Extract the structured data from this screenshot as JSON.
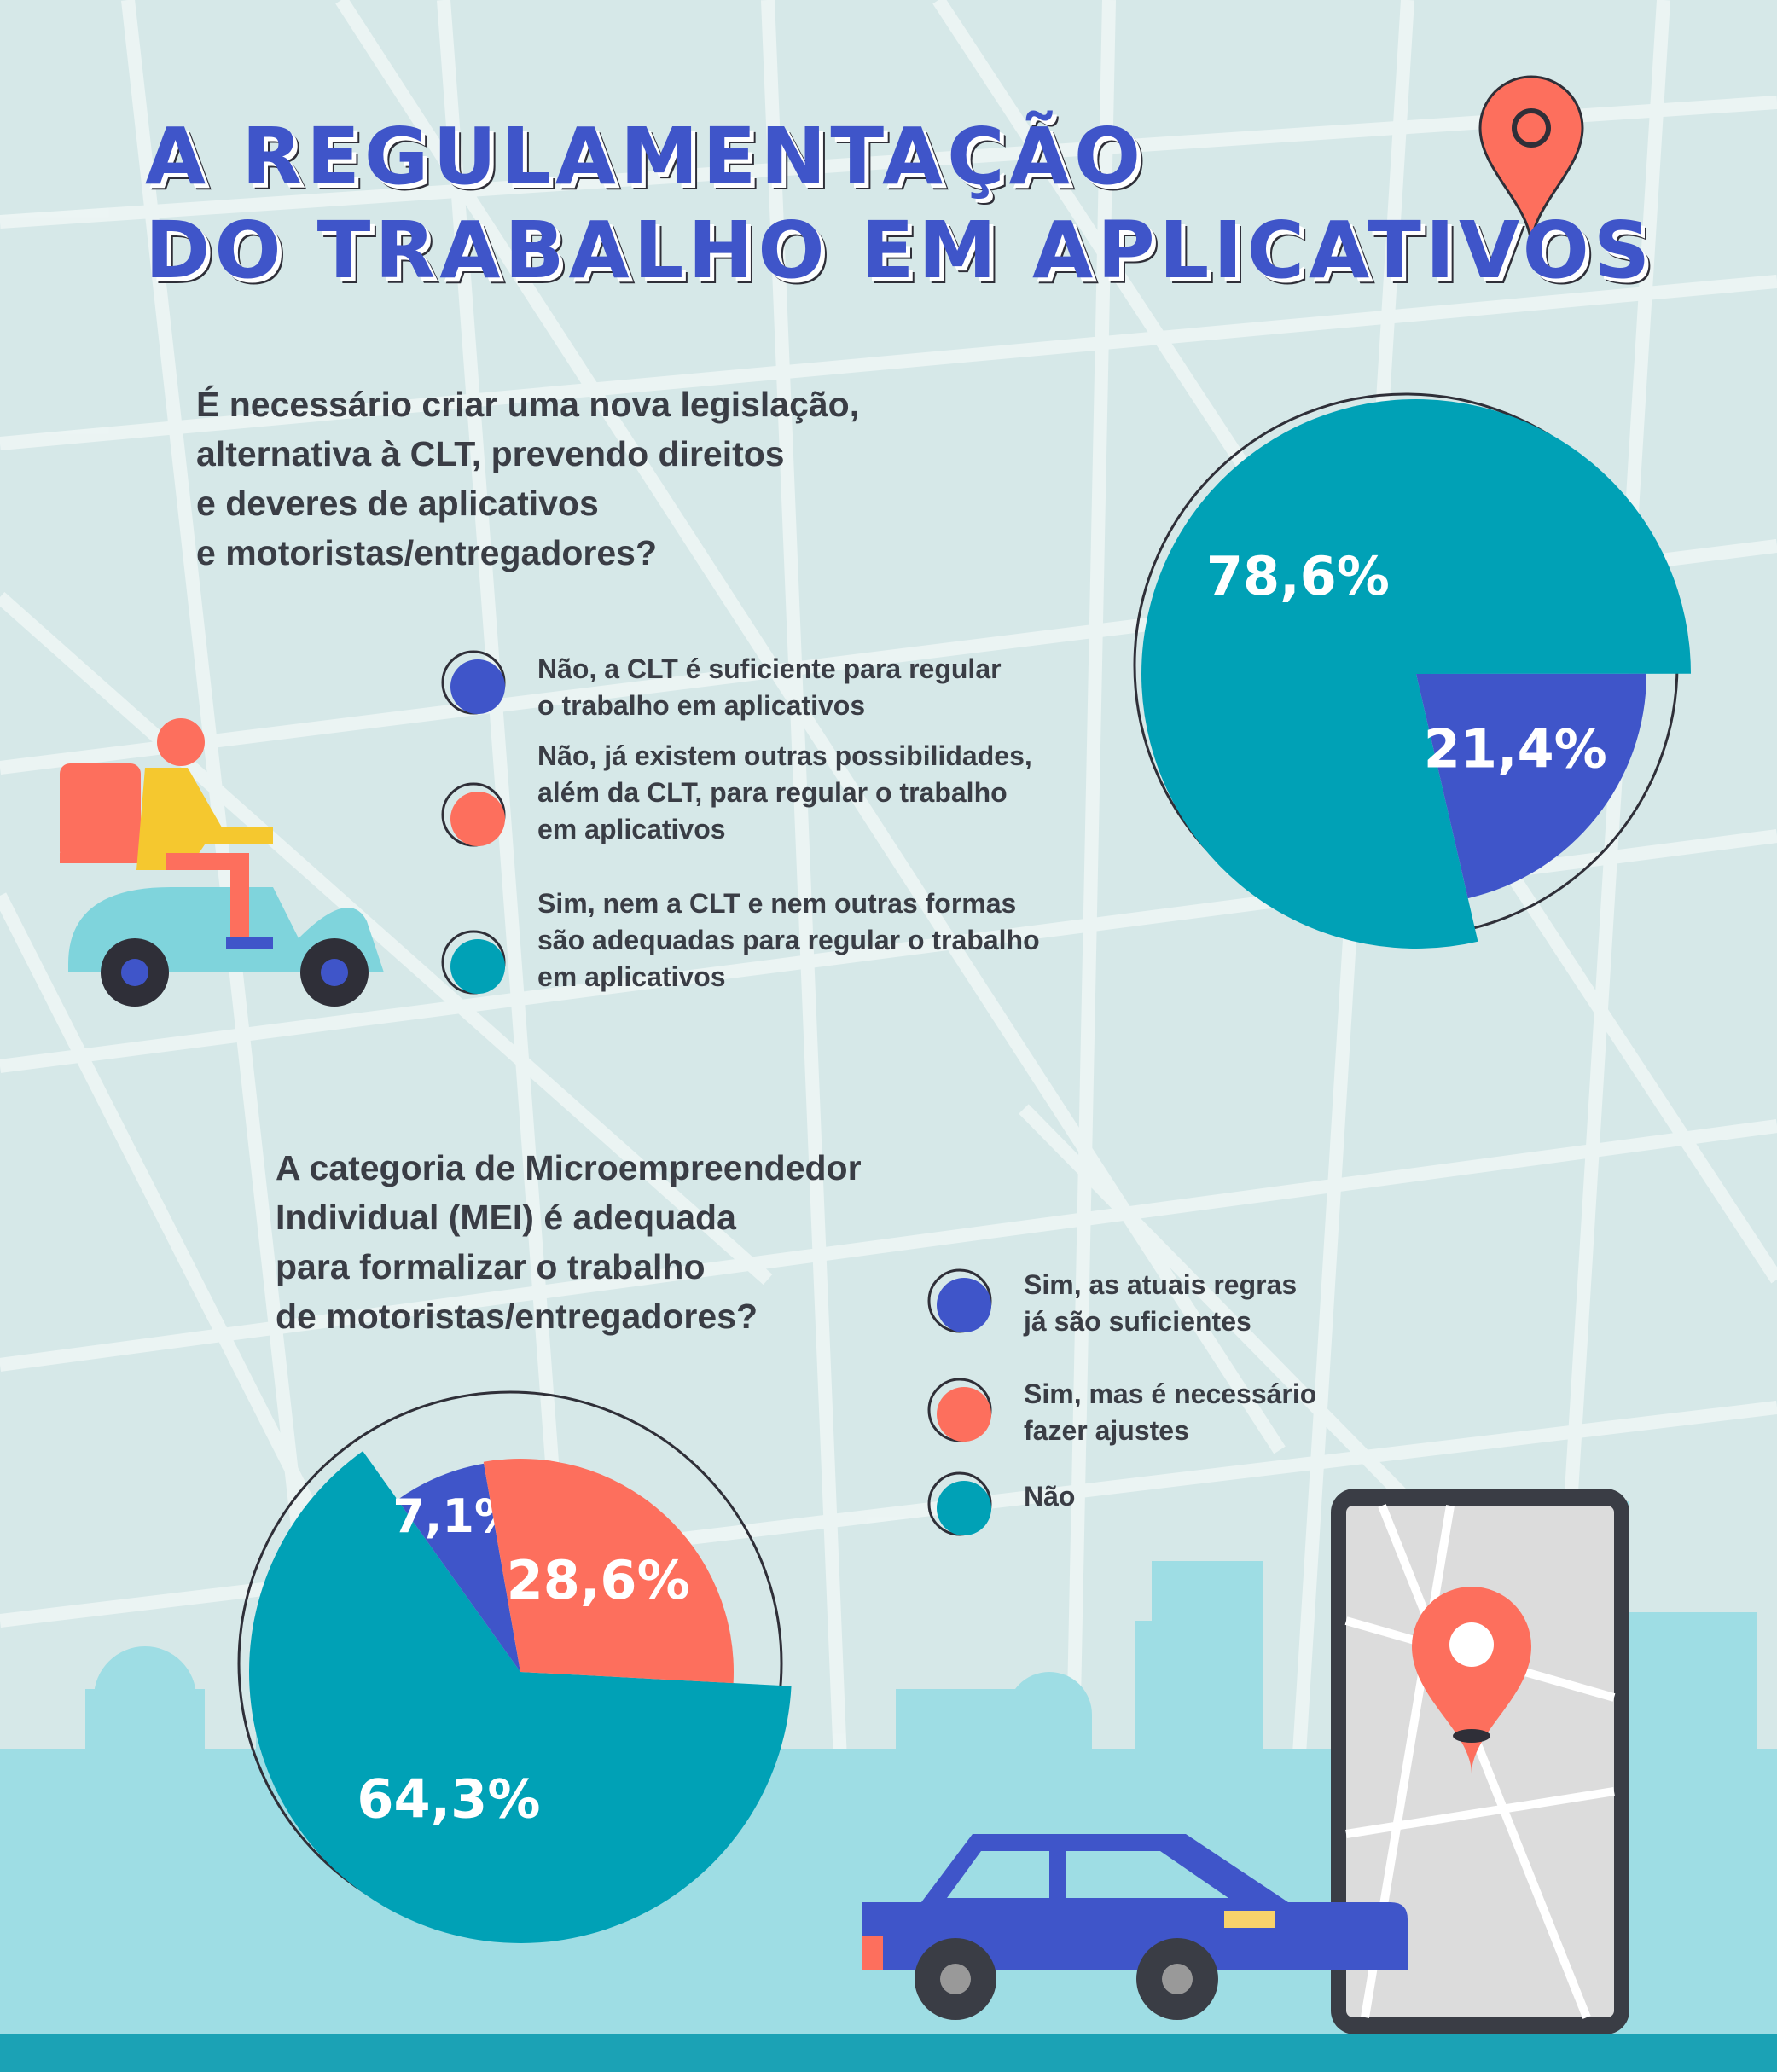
{
  "title": {
    "line1": "A REGULAMENTAÇÃO",
    "line2": "DO TRABALHO EM APLICATIVOS"
  },
  "colors": {
    "blue": "#3f55c9",
    "coral": "#fd6f5d",
    "teal": "#00a1b6",
    "background": "#d6e8e8"
  },
  "section1": {
    "question": "É necessário criar uma nova legislação,\nalternativa à CLT, prevendo direitos\ne deveres de aplicativos\ne motoristas/entregadores?",
    "legend": [
      {
        "label": "Não, a CLT é suficiente para regular\no trabalho em aplicativos",
        "color": "#3f55c9"
      },
      {
        "label": "Não, já existem outras possibilidades,\nalém da CLT, para regular o trabalho\nem aplicativos",
        "color": "#fd6f5d"
      },
      {
        "label": "Sim, nem a CLT e nem outras formas\nsão adequadas para regular o trabalho\nem aplicativos",
        "color": "#00a1b6"
      }
    ]
  },
  "section2": {
    "question": "A categoria de Microempreendedor\nIndividual (MEI) é adequada\npara formalizar o trabalho\nde motoristas/entregadores?",
    "legend": [
      {
        "label": "Sim, as atuais regras\njá são suficientes",
        "color": "#3f55c9"
      },
      {
        "label": "Sim, mas é necessário\nfazer ajustes",
        "color": "#fd6f5d"
      },
      {
        "label": "Não",
        "color": "#00a1b6"
      }
    ]
  },
  "chart_data": [
    {
      "type": "pie",
      "title": "",
      "slices": [
        {
          "label": "Sim, nem a CLT e nem outras formas são adequadas para regular o trabalho em aplicativos",
          "value": 78.6,
          "display": "78,6%",
          "color": "#00a1b6"
        },
        {
          "label": "Não, a CLT é suficiente para regular o trabalho em aplicativos",
          "value": 21.4,
          "display": "21,4%",
          "color": "#3f55c9"
        }
      ]
    },
    {
      "type": "pie",
      "title": "",
      "slices": [
        {
          "label": "Não",
          "value": 64.3,
          "display": "64,3%",
          "color": "#00a1b6"
        },
        {
          "label": "Sim, as atuais regras já são suficientes",
          "value": 7.1,
          "display": "7,1%",
          "color": "#3f55c9"
        },
        {
          "label": "Sim, mas é necessário fazer ajustes",
          "value": 28.6,
          "display": "28,6%",
          "color": "#fd6f5d"
        }
      ]
    }
  ]
}
